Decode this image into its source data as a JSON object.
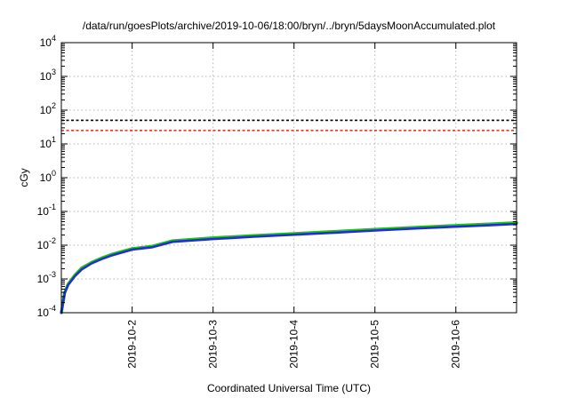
{
  "chart_data": {
    "type": "line",
    "title": "/data/run/goesPlots/archive/2019-10-06/18:00/bryn/../bryn/5daysMoonAccumulated.plot",
    "xlabel": "Coordinated Universal Time (UTC)",
    "ylabel": "cGy",
    "y_scale": "log",
    "ylim_exponents": [
      -4,
      4
    ],
    "y_tick_base": "10",
    "y_tick_exponents": [
      "-4",
      "-3",
      "-2",
      "-1",
      "0",
      "1",
      "2",
      "3",
      "4"
    ],
    "xlim": [
      "2019-10-01 03:00",
      "2019-10-06 18:00"
    ],
    "x_tick_labels": [
      "2019-10-2",
      "2019-10-3",
      "2019-10-4",
      "2019-10-5",
      "2019-10-6"
    ],
    "x_tick_dates": [
      "2019-10-02",
      "2019-10-03",
      "2019-10-04",
      "2019-10-05",
      "2019-10-06"
    ],
    "grid": true,
    "reference_lines": [
      {
        "value": 50,
        "color": "#000000",
        "style": "dashed"
      },
      {
        "value": 25,
        "color": "#e8251f",
        "style": "dashed"
      }
    ],
    "series": [
      {
        "color": "#22c41c",
        "x": [
          "2019-10-01 03:00",
          "2019-10-01 04:00",
          "2019-10-01 05:00",
          "2019-10-01 07:00",
          "2019-10-01 09:00",
          "2019-10-01 12:00",
          "2019-10-01 15:00",
          "2019-10-01 18:00",
          "2019-10-02 00:00",
          "2019-10-02 06:00",
          "2019-10-02 12:00",
          "2019-10-03 00:00",
          "2019-10-03 12:00",
          "2019-10-04 00:00",
          "2019-10-04 12:00",
          "2019-10-05 00:00",
          "2019-10-05 12:00",
          "2019-10-06 00:00",
          "2019-10-06 12:00",
          "2019-10-06 18:00"
        ],
        "values": [
          0.0001,
          0.0004,
          0.0007,
          0.0013,
          0.0021,
          0.0031,
          0.0042,
          0.0054,
          0.0079,
          0.0093,
          0.0135,
          0.0165,
          0.0193,
          0.0221,
          0.0254,
          0.0295,
          0.0338,
          0.0384,
          0.0432,
          0.0462
        ]
      },
      {
        "color": "#1f2fd6",
        "x": [
          "2019-10-01 03:00",
          "2019-10-01 04:00",
          "2019-10-01 05:00",
          "2019-10-01 07:00",
          "2019-10-01 09:00",
          "2019-10-01 12:00",
          "2019-10-01 15:00",
          "2019-10-01 18:00",
          "2019-10-02 00:00",
          "2019-10-02 06:00",
          "2019-10-02 12:00",
          "2019-10-03 00:00",
          "2019-10-03 12:00",
          "2019-10-04 00:00",
          "2019-10-04 12:00",
          "2019-10-05 00:00",
          "2019-10-05 12:00",
          "2019-10-06 00:00",
          "2019-10-06 12:00",
          "2019-10-06 18:00"
        ],
        "values": [
          0.0001,
          0.00038,
          0.00066,
          0.0012,
          0.0019,
          0.0029,
          0.0039,
          0.005,
          0.0074,
          0.0087,
          0.0126,
          0.0152,
          0.0178,
          0.0204,
          0.0234,
          0.0272,
          0.0312,
          0.0354,
          0.0398,
          0.0426
        ]
      }
    ]
  }
}
